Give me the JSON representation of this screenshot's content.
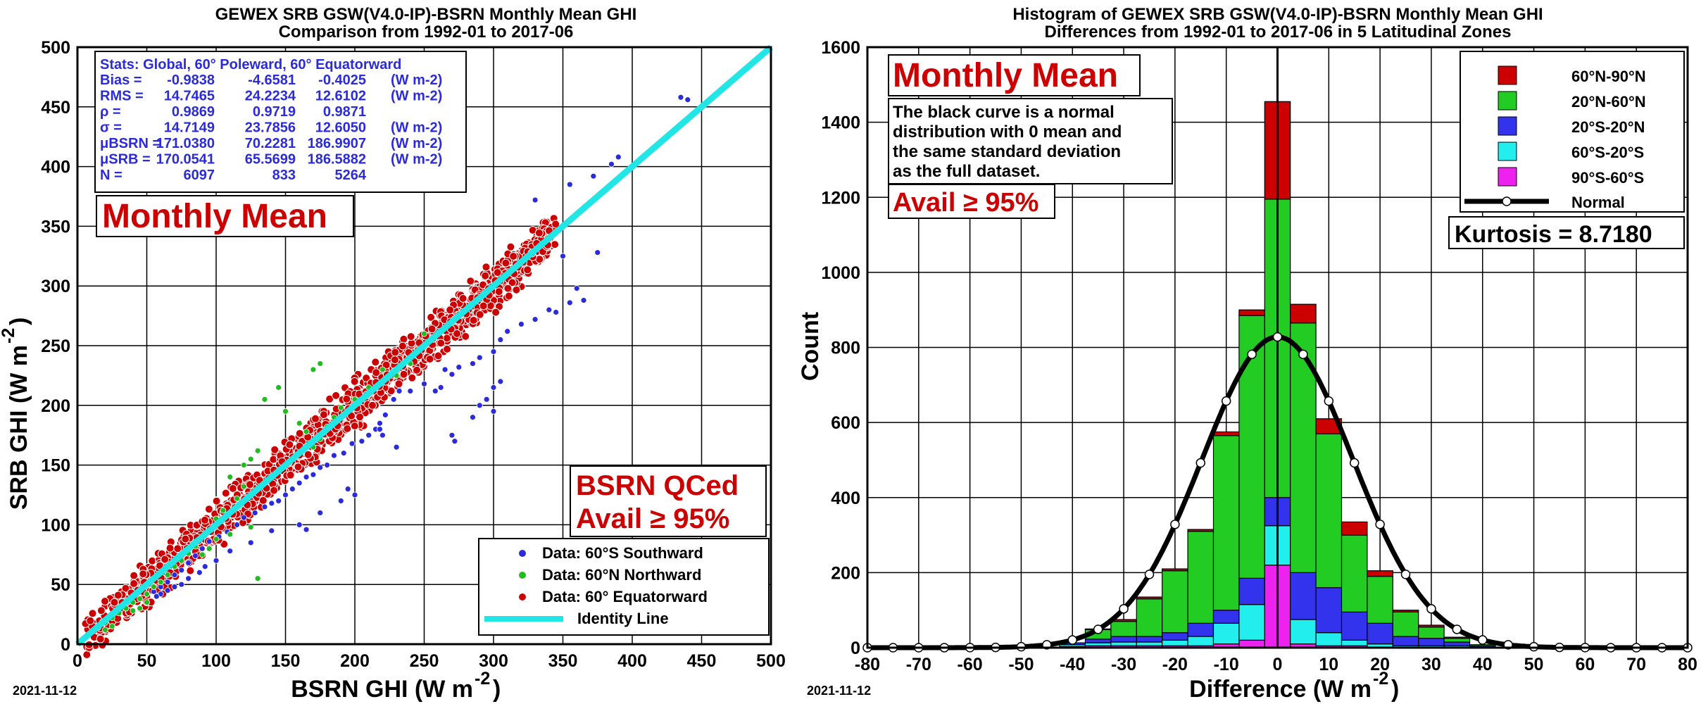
{
  "chart_data": [
    {
      "type": "scatter",
      "title": "GEWEX SRB GSW(V4.0-IP)-BSRN Monthly Mean GHI",
      "subtitle": "Comparison from 1992-01 to 2017-06",
      "xlabel": "BSRN GHI (W m",
      "ylabel": "SRB GHI (W m",
      "unit_sup": "-2",
      "xlim": [
        0,
        500
      ],
      "ylim": [
        0,
        500
      ],
      "ticks": [
        0,
        50,
        100,
        150,
        200,
        250,
        300,
        350,
        400,
        450,
        500
      ],
      "grid": true,
      "date": "2021-11-12",
      "colors": {
        "south": "#2b2bd9",
        "north": "#22bb22",
        "equator": "#cc0000",
        "identity": "#22e5e5",
        "stats": "#2b2bd9"
      },
      "stats": {
        "header": "Stats: Global, 60° Poleward, 60° Equatorward",
        "rows": [
          {
            "label": "Bias =",
            "values": [
              "-0.9838",
              "-4.6581",
              "-0.4025"
            ],
            "unit": "(W m-2)"
          },
          {
            "label": "RMS =",
            "values": [
              "14.7465",
              "24.2234",
              "12.6102"
            ],
            "unit": "(W m-2)"
          },
          {
            "label": "ρ =",
            "values": [
              "0.9869",
              "0.9719",
              "0.9871"
            ],
            "unit": ""
          },
          {
            "label": "σ =",
            "values": [
              "14.7149",
              "23.7856",
              "12.6050"
            ],
            "unit": "(W m-2)"
          },
          {
            "label": "μBSRN =",
            "values": [
              "171.0380",
              "70.2281",
              "186.9907"
            ],
            "unit": "(W m-2)"
          },
          {
            "label": "μSRB =",
            "values": [
              "170.0541",
              "65.5699",
              "186.5882"
            ],
            "unit": "(W m-2)"
          },
          {
            "label": "N =",
            "values": [
              "6097",
              "833",
              "5264"
            ],
            "unit": ""
          }
        ]
      },
      "monthly_label": "Monthly Mean",
      "qc_label_1": "BSRN QCed",
      "qc_label_2": "Avail ≥ 95%",
      "legend": [
        {
          "key": "south",
          "label": "Data: 60°S Southward"
        },
        {
          "key": "north",
          "label": "Data: 60°N Northward"
        },
        {
          "key": "equator",
          "label": "Data: 60° Equatorward"
        },
        {
          "key": "identity",
          "label": "Identity Line"
        }
      ],
      "identity_line": [
        [
          0,
          0
        ],
        [
          500,
          500
        ]
      ],
      "series": [
        {
          "name": "Data: 60°S Southward",
          "key": "south",
          "points": [
            [
              435,
              458
            ],
            [
              440,
              456
            ],
            [
              385,
              402
            ],
            [
              390,
              408
            ],
            [
              372,
              392
            ],
            [
              355,
              385
            ],
            [
              330,
              372
            ],
            [
              375,
              328
            ],
            [
              350,
              325
            ],
            [
              360,
              298
            ],
            [
              365,
              288
            ],
            [
              355,
              286
            ],
            [
              340,
              280
            ],
            [
              345,
              278
            ],
            [
              330,
              272
            ],
            [
              320,
              268
            ],
            [
              310,
              262
            ],
            [
              305,
              255
            ],
            [
              300,
              245
            ],
            [
              290,
              240
            ],
            [
              285,
              235
            ],
            [
              275,
              232
            ],
            [
              270,
              226
            ],
            [
              265,
              230
            ],
            [
              262,
              215
            ],
            [
              258,
              212
            ],
            [
              250,
              218
            ],
            [
              240,
              212
            ],
            [
              232,
              212
            ],
            [
              228,
              205
            ],
            [
              222,
              192
            ],
            [
              218,
              185
            ],
            [
              215,
              180
            ],
            [
              210,
              175
            ],
            [
              205,
              170
            ],
            [
              198,
              168
            ],
            [
              192,
              160
            ],
            [
              185,
              158
            ],
            [
              180,
              150
            ],
            [
              175,
              148
            ],
            [
              170,
              142
            ],
            [
              165,
              140
            ],
            [
              160,
              135
            ],
            [
              155,
              130
            ],
            [
              150,
              125
            ],
            [
              145,
              120
            ],
            [
              140,
              118
            ],
            [
              135,
              115
            ],
            [
              128,
              110
            ],
            [
              120,
              106
            ],
            [
              115,
              100
            ],
            [
              108,
              94
            ],
            [
              102,
              90
            ],
            [
              95,
              86
            ],
            [
              90,
              80
            ],
            [
              85,
              74
            ],
            [
              80,
              68
            ],
            [
              75,
              62
            ],
            [
              70,
              58
            ],
            [
              65,
              52
            ],
            [
              60,
              48
            ],
            [
              55,
              44
            ],
            [
              50,
              42
            ],
            [
              290,
              200
            ],
            [
              295,
              205
            ],
            [
              300,
              215
            ],
            [
              305,
              220
            ],
            [
              300,
              195
            ],
            [
              285,
              190
            ],
            [
              270,
              175
            ],
            [
              272,
              170
            ],
            [
              218,
              180
            ],
            [
              220,
              175
            ],
            [
              230,
              165
            ],
            [
              195,
              130
            ],
            [
              200,
              125
            ],
            [
              190,
              120
            ],
            [
              175,
              110
            ],
            [
              160,
              100
            ],
            [
              165,
              96
            ],
            [
              140,
              95
            ],
            [
              125,
              85
            ],
            [
              110,
              78
            ],
            [
              100,
              70
            ],
            [
              92,
              65
            ],
            [
              88,
              60
            ],
            [
              80,
              55
            ],
            [
              75,
              50
            ],
            [
              70,
              48
            ],
            [
              65,
              45
            ],
            [
              60,
              42
            ],
            [
              57,
              40
            ]
          ]
        },
        {
          "name": "Data: 60°N Northward",
          "key": "north",
          "points": [
            [
              175,
              235
            ],
            [
              170,
              230
            ],
            [
              145,
              215
            ],
            [
              135,
              205
            ],
            [
              150,
              195
            ],
            [
              160,
              185
            ],
            [
              165,
              178
            ],
            [
              130,
              162
            ],
            [
              125,
              155
            ],
            [
              120,
              150
            ],
            [
              110,
              140
            ],
            [
              120,
              132
            ],
            [
              115,
              122
            ],
            [
              105,
              112
            ],
            [
              100,
              105
            ],
            [
              95,
              95
            ],
            [
              90,
              90
            ],
            [
              85,
              82
            ],
            [
              80,
              76
            ],
            [
              75,
              70
            ],
            [
              70,
              65
            ],
            [
              65,
              58
            ],
            [
              60,
              52
            ],
            [
              55,
              48
            ],
            [
              50,
              42
            ],
            [
              45,
              38
            ],
            [
              40,
              35
            ],
            [
              35,
              30
            ],
            [
              30,
              26
            ],
            [
              25,
              22
            ],
            [
              20,
              18
            ],
            [
              15,
              14
            ],
            [
              230,
              225
            ],
            [
              240,
              235
            ],
            [
              250,
              260
            ],
            [
              255,
              255
            ],
            [
              220,
              230
            ],
            [
              210,
              215
            ],
            [
              200,
              205
            ],
            [
              190,
              198
            ],
            [
              185,
              190
            ],
            [
              180,
              182
            ],
            [
              175,
              172
            ],
            [
              170,
              165
            ],
            [
              130,
              55
            ],
            [
              50,
              35
            ],
            [
              45,
              30
            ],
            [
              40,
              28
            ],
            [
              25,
              15
            ],
            [
              20,
              12
            ],
            [
              100,
              88
            ],
            [
              95,
              80
            ],
            [
              90,
              75
            ],
            [
              110,
              92
            ],
            [
              125,
              98
            ]
          ]
        }
      ],
      "equatorward_band": {
        "x_min": 5,
        "x_max": 345,
        "spread": 14
      }
    },
    {
      "type": "bar",
      "stacked": true,
      "title": "Histogram of GEWEX SRB GSW(V4.0-IP)-BSRN Monthly Mean GHI",
      "subtitle": "Differences from 1992-01 to 2017-06 in 5 Latitudinal Zones",
      "xlabel": "Difference (W m",
      "ylabel": "Count",
      "unit_sup": "-2",
      "xlim": [
        -80,
        80
      ],
      "ylim": [
        0,
        1600
      ],
      "xticks": [
        -80,
        -70,
        -60,
        -50,
        -40,
        -30,
        -20,
        -10,
        0,
        10,
        20,
        30,
        40,
        50,
        60,
        70,
        80
      ],
      "yticks": [
        0,
        200,
        400,
        600,
        800,
        1000,
        1200,
        1400,
        1600
      ],
      "grid": true,
      "date": "2021-11-12",
      "bin_width": 5,
      "monthly_label": "Monthly Mean",
      "note_lines": [
        "The black curve is a normal",
        "distribution with 0 mean and",
        "the same standard deviation",
        "as the full dataset."
      ],
      "avail_label": "Avail ≥ 95%",
      "kurtosis_label": "Kurtosis = 8.7180",
      "zones": [
        {
          "name": "60°N-90°N",
          "color": "#cc0000"
        },
        {
          "name": "20°N-60°N",
          "color": "#22cc22"
        },
        {
          "name": "20°S-20°N",
          "color": "#3333ee"
        },
        {
          "name": "60°S-20°S",
          "color": "#22eeee"
        },
        {
          "name": "90°S-60°S",
          "color": "#ee22ee"
        }
      ],
      "normal_label": "Normal",
      "bins": [
        {
          "center": -70,
          "values": [
            0,
            0,
            0,
            0,
            5
          ]
        },
        {
          "center": -40,
          "values": [
            0,
            0,
            5,
            5,
            3
          ]
        },
        {
          "center": -35,
          "values": [
            2,
            25,
            10,
            8,
            5
          ]
        },
        {
          "center": -30,
          "values": [
            5,
            40,
            15,
            10,
            5
          ]
        },
        {
          "center": -25,
          "values": [
            5,
            100,
            15,
            10,
            5
          ]
        },
        {
          "center": -20,
          "values": [
            5,
            165,
            20,
            15,
            5
          ]
        },
        {
          "center": -15,
          "values": [
            5,
            245,
            35,
            25,
            5
          ]
        },
        {
          "center": -10,
          "values": [
            10,
            465,
            35,
            55,
            10
          ]
        },
        {
          "center": -5,
          "values": [
            15,
            700,
            70,
            95,
            20
          ]
        },
        {
          "center": 0,
          "values": [
            260,
            795,
            75,
            105,
            220
          ]
        },
        {
          "center": 5,
          "values": [
            50,
            665,
            125,
            65,
            10
          ]
        },
        {
          "center": 10,
          "values": [
            40,
            410,
            120,
            35,
            5
          ]
        },
        {
          "center": 15,
          "values": [
            35,
            205,
            75,
            15,
            5
          ]
        },
        {
          "center": 20,
          "values": [
            15,
            125,
            55,
            10,
            0
          ]
        },
        {
          "center": 25,
          "values": [
            5,
            65,
            25,
            5,
            0
          ]
        },
        {
          "center": 30,
          "values": [
            5,
            30,
            20,
            5,
            0
          ]
        },
        {
          "center": 35,
          "values": [
            3,
            10,
            10,
            5,
            0
          ]
        },
        {
          "center": 40,
          "values": [
            0,
            3,
            3,
            2,
            0
          ]
        }
      ],
      "normal_curve": {
        "peak": 828,
        "sigma": 14.71,
        "marker_step": 5
      }
    }
  ]
}
